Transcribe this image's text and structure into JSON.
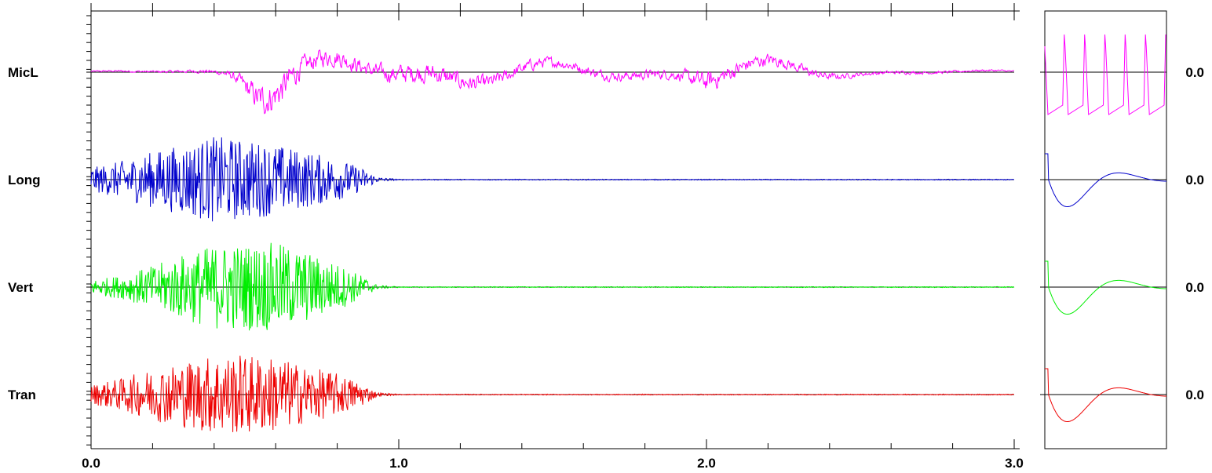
{
  "chart_data": {
    "type": "line",
    "title": "",
    "xlabel": "",
    "ylabel": "",
    "xlim": [
      0.0,
      3.0
    ],
    "x_ticks": [
      "0.0",
      "1.0",
      "2.0",
      "3.0"
    ],
    "x_minor_step": 0.2,
    "grid": false,
    "legend": "none",
    "series": [
      {
        "name": "MicL",
        "color": "#ff00ff",
        "right_value": "0.0",
        "envelope": [
          [
            0.0,
            0.05
          ],
          [
            0.25,
            0.08
          ],
          [
            0.4,
            0.12
          ],
          [
            0.45,
            0.2
          ],
          [
            0.5,
            0.55
          ],
          [
            0.55,
            0.9
          ],
          [
            0.62,
            0.95
          ],
          [
            0.7,
            0.55
          ],
          [
            0.8,
            0.55
          ],
          [
            0.9,
            0.45
          ],
          [
            1.0,
            0.55
          ],
          [
            1.1,
            0.6
          ],
          [
            1.3,
            0.42
          ],
          [
            1.5,
            0.3
          ],
          [
            1.7,
            0.28
          ],
          [
            1.9,
            0.3
          ],
          [
            2.0,
            0.6
          ],
          [
            2.1,
            0.45
          ],
          [
            2.3,
            0.3
          ],
          [
            2.5,
            0.12
          ],
          [
            2.8,
            0.08
          ],
          [
            3.0,
            0.05
          ]
        ],
        "inset": {
          "kind": "pulse_train",
          "cycles": 6
        }
      },
      {
        "name": "Long",
        "color": "#0000cc",
        "right_value": "0.0",
        "envelope": [
          [
            0.0,
            0.25
          ],
          [
            0.1,
            0.4
          ],
          [
            0.2,
            0.6
          ],
          [
            0.3,
            0.75
          ],
          [
            0.4,
            0.92
          ],
          [
            0.5,
            0.85
          ],
          [
            0.6,
            0.75
          ],
          [
            0.7,
            0.6
          ],
          [
            0.8,
            0.45
          ],
          [
            0.88,
            0.25
          ],
          [
            0.93,
            0.05
          ],
          [
            1.0,
            0.01
          ],
          [
            3.0,
            0.01
          ]
        ],
        "inset": {
          "kind": "damped_response",
          "initial": 0.55,
          "trough": -1.0,
          "peak": 0.25
        }
      },
      {
        "name": "Vert",
        "color": "#00ee00",
        "right_value": "0.0",
        "envelope": [
          [
            0.0,
            0.15
          ],
          [
            0.1,
            0.25
          ],
          [
            0.2,
            0.45
          ],
          [
            0.3,
            0.7
          ],
          [
            0.4,
            0.9
          ],
          [
            0.5,
            0.92
          ],
          [
            0.6,
            0.95
          ],
          [
            0.7,
            0.75
          ],
          [
            0.8,
            0.5
          ],
          [
            0.88,
            0.25
          ],
          [
            0.93,
            0.04
          ],
          [
            1.0,
            0.01
          ],
          [
            3.0,
            0.01
          ]
        ],
        "inset": {
          "kind": "damped_response",
          "initial": 0.55,
          "trough": -1.0,
          "peak": 0.25
        }
      },
      {
        "name": "Tran",
        "color": "#ee0000",
        "right_value": "0.0",
        "envelope": [
          [
            0.0,
            0.2
          ],
          [
            0.1,
            0.35
          ],
          [
            0.2,
            0.55
          ],
          [
            0.3,
            0.7
          ],
          [
            0.4,
            0.85
          ],
          [
            0.5,
            0.85
          ],
          [
            0.6,
            0.8
          ],
          [
            0.7,
            0.6
          ],
          [
            0.8,
            0.45
          ],
          [
            0.88,
            0.25
          ],
          [
            0.93,
            0.04
          ],
          [
            1.0,
            0.01
          ],
          [
            3.0,
            0.01
          ]
        ],
        "inset": {
          "kind": "damped_response",
          "initial": 0.55,
          "trough": -1.0,
          "peak": 0.25
        }
      }
    ]
  }
}
